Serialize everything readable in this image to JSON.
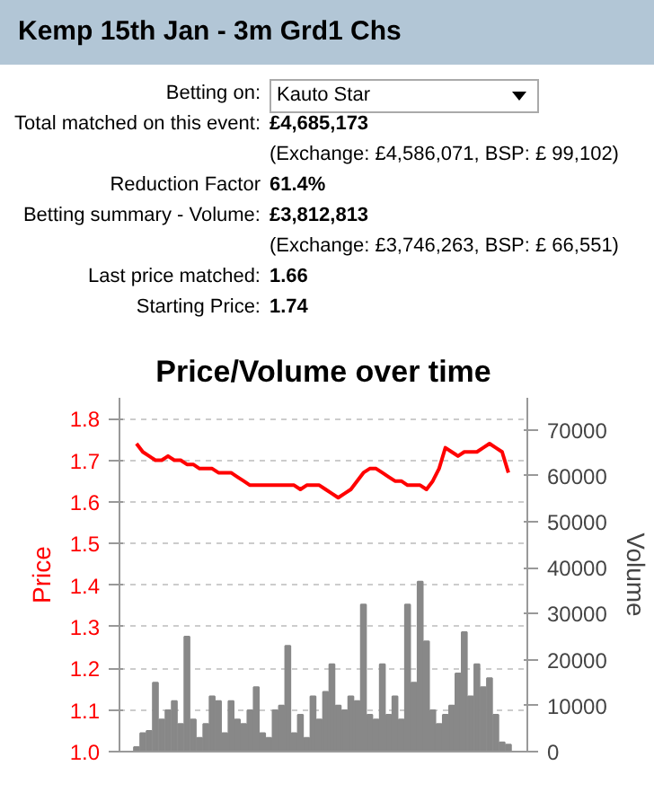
{
  "chart_data": [
    {
      "type": "other",
      "title": "Kemp 15th Jan - 3m Grd1 Chs",
      "annotations": [
        "Betting on:",
        "Kauto Star",
        "Total matched on this event:",
        "£4,685,173",
        "(Exchange: £4,586,071, BSP: £ 99,102)",
        "Reduction Factor",
        "61.4%",
        "Betting summary - Volume:",
        "£3,812,813",
        "(Exchange: £3,746,263, BSP: £ 66,551)",
        "Last price matched:",
        "1.66",
        "Starting Price:",
        "1.74"
      ]
    },
    {
      "type": "line",
      "title": "Price/Volume over time",
      "ylabel": "Price",
      "y2label": "Volume",
      "categories": [
        null,
        null,
        null,
        null,
        null,
        null,
        null,
        null,
        null,
        null,
        null,
        null,
        null,
        null,
        null,
        null,
        null,
        null,
        null,
        null,
        null,
        null,
        null,
        null,
        null,
        null,
        null,
        null,
        null,
        null,
        null,
        null,
        null,
        null,
        null,
        null,
        null,
        null,
        null,
        null,
        null,
        null,
        null,
        null,
        null,
        null,
        null,
        null,
        null,
        null,
        null,
        null,
        null,
        null,
        null,
        null,
        null,
        null,
        null,
        null
      ],
      "series": [
        {
          "type": "bar",
          "axis": "y2",
          "color": "#888888",
          "values": [
            1000,
            4000,
            4500,
            15000,
            7000,
            9000,
            11000,
            6000,
            25000,
            7000,
            3000,
            6000,
            12000,
            11000,
            4000,
            11000,
            7000,
            6000,
            9000,
            14000,
            4000,
            3000,
            9000,
            10000,
            23000,
            4000,
            8000,
            3000,
            12000,
            7000,
            13000,
            19000,
            10000,
            9000,
            12000,
            11000,
            32000,
            8000,
            7000,
            19000,
            8000,
            12000,
            7000,
            32000,
            15000,
            37000,
            24000,
            9000,
            6000,
            8000,
            10000,
            17000,
            26000,
            12000,
            19000,
            14000,
            16000,
            8000,
            2000,
            1500
          ]
        },
        {
          "type": "line",
          "color": "#ff0000",
          "values": [
            1.74,
            1.72,
            1.71,
            1.7,
            1.7,
            1.71,
            1.7,
            1.7,
            1.69,
            1.69,
            1.68,
            1.68,
            1.68,
            1.67,
            1.67,
            1.67,
            1.66,
            1.65,
            1.64,
            1.64,
            1.64,
            1.64,
            1.64,
            1.64,
            1.64,
            1.64,
            1.63,
            1.64,
            1.64,
            1.64,
            1.63,
            1.62,
            1.61,
            1.62,
            1.63,
            1.65,
            1.67,
            1.68,
            1.68,
            1.67,
            1.66,
            1.65,
            1.65,
            1.64,
            1.64,
            1.64,
            1.63,
            1.65,
            1.68,
            1.73,
            1.72,
            1.71,
            1.72,
            1.72,
            1.72,
            1.73,
            1.74,
            1.73,
            1.72,
            1.67
          ]
        }
      ],
      "ylim": [
        1.0,
        1.85
      ],
      "yticks": [
        {
          "value": 1.0,
          "label": "1.0"
        },
        1.1,
        1.2,
        1.3,
        1.4,
        1.5,
        1.6,
        1.7,
        1.8
      ],
      "y2lim": [
        0,
        77000
      ],
      "y2ticks": [
        0,
        10000,
        20000,
        30000,
        40000,
        50000,
        60000,
        70000
      ],
      "grid": "y",
      "tick_labels": "y"
    }
  ]
}
